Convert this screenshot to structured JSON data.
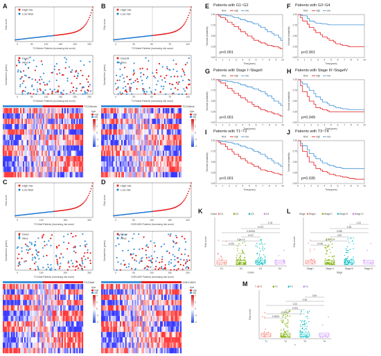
{
  "left_panels": [
    {
      "letter": "A",
      "cohort": "TCGAtrain",
      "xticks": [
        "0",
        "50",
        "100",
        "150",
        "200",
        "250"
      ],
      "n": 260,
      "xlab_risk": "TCGAtrain Patients (increasing risk score)",
      "xlab_surv": "TCGAtrain Patients (increasing risk score)",
      "heat_title": "TCGAtrain"
    },
    {
      "letter": "B",
      "cohort": "TCGAtest",
      "xticks": [
        "0",
        "25",
        "50",
        "75",
        "100"
      ],
      "n": 110,
      "xlab_risk": "TCGAtest Patients (increasing risk score)",
      "xlab_surv": "TCGAtest Patients (increasing risk score)",
      "heat_title": "TCGAtest"
    },
    {
      "letter": "C",
      "cohort": "TCGAall",
      "xticks": [
        "0",
        "100",
        "200",
        "300"
      ],
      "n": 370,
      "xlab_risk": "TCGAall Patients (increasing risk score)",
      "xlab_surv": "TCGAall Patients (increasing risk score)",
      "heat_title": "TCGAall"
    },
    {
      "letter": "D",
      "cohort": "GSE14520",
      "xticks": [
        "0",
        "50",
        "100",
        "150",
        "200"
      ],
      "n": 220,
      "xlab_risk": "GSE14520 Patients (increasing risk score)",
      "xlab_surv": "GSE14520 Patients (increasing risk score)",
      "heat_title": "GSE14520"
    }
  ],
  "common": {
    "legend_high": "High risk",
    "legend_low": "Low Risk",
    "legend_low_alt": "Low risk",
    "legend_dead": "Dead",
    "legend_alive": "Alive",
    "ylab_risk": "Risk score",
    "ylab_surv": "Survival time (years)",
    "heat_legend_type": "type",
    "heat_legend_high": "high",
    "heat_legend_low": "low",
    "heat_scale": [
      "4",
      "2",
      "0",
      "-2",
      "-4"
    ]
  },
  "km_panels": [
    {
      "letter": "E",
      "title": "Patients with G1~G2",
      "pval": "p<0.001"
    },
    {
      "letter": "F",
      "title": "Patients with G3~G4",
      "pval": "p<0.001"
    },
    {
      "letter": "G",
      "title": "Patients with Stage I~StageII",
      "pval": "p<0.001"
    },
    {
      "letter": "H",
      "title": "Patients with Stage III~StageIV",
      "pval": "p=0.049"
    },
    {
      "letter": "I",
      "title": "Patients with T1~T2",
      "pval": "p<0.001"
    },
    {
      "letter": "J",
      "title": "Patients with T3~T4",
      "pval": "p=0.035"
    }
  ],
  "km_common": {
    "legend_risk": "Risk",
    "legend_high": "high",
    "legend_low": "low",
    "ylab": "Survival probability",
    "xlab": "Time(years)",
    "xticks": [
      "0",
      "1",
      "2",
      "3",
      "4",
      "5",
      "6",
      "7",
      "8",
      "9",
      "10"
    ],
    "yticks": [
      "0.00",
      "0.25",
      "0.50",
      "0.75",
      "1.00"
    ],
    "high_color": "#e41a1c",
    "low_color": "#3b8fd9"
  },
  "box_panels": [
    {
      "letter": "K",
      "legend_title": "Grade",
      "groups": [
        "G1",
        "G2",
        "G3",
        "G4"
      ],
      "xlab": "Grade",
      "pvals": [
        "0.031",
        "3.8e-10",
        "0.017",
        "0.00028",
        "0.073",
        "0.78"
      ]
    },
    {
      "letter": "L",
      "legend_title": "Stage",
      "groups": [
        "Stage I",
        "Stage II",
        "Stage III",
        "Stage IV"
      ],
      "xlab": "Stage",
      "pvals": [
        "0.018",
        "8.4e-10",
        "0.82",
        "0.069",
        "0.38",
        "0.22"
      ]
    },
    {
      "letter": "M",
      "legend_title": "T",
      "groups": [
        "T1",
        "T2",
        "T3",
        "T4"
      ],
      "xlab": "T",
      "pvals": [
        "0.0009",
        "7.6e-12",
        "0.031",
        "0.22",
        "0.35",
        "0.84"
      ]
    }
  ],
  "box_common": {
    "ylab": "Risk score",
    "colors": [
      "#f8766d",
      "#7cae00",
      "#00bfc4",
      "#c77cff"
    ]
  }
}
